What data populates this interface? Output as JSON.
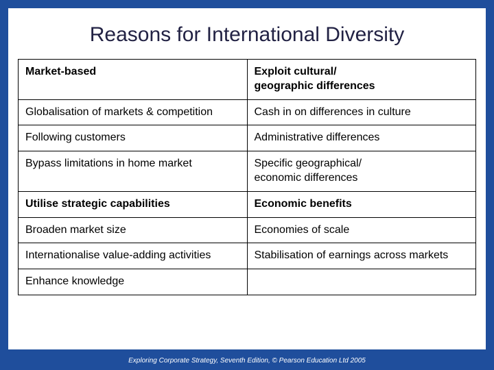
{
  "title": "Reasons for International Diversity",
  "table": {
    "columns": [
      {
        "width": "50%"
      },
      {
        "width": "50%"
      }
    ],
    "rows": [
      {
        "left": "Market-based",
        "right": "Exploit cultural/\ngeographic differences",
        "bold": true
      },
      {
        "left": "Globalisation of markets & competition",
        "right": "Cash in on differences in culture",
        "bold": false
      },
      {
        "left": "Following customers",
        "right": "Administrative differences",
        "bold": false
      },
      {
        "left": "Bypass limitations in home market",
        "right": "Specific geographical/\neconomic differences",
        "bold": false
      },
      {
        "left": "Utilise strategic capabilities",
        "right": "Economic benefits",
        "bold": true
      },
      {
        "left": "Broaden market size",
        "right": "Economies of scale",
        "bold": false
      },
      {
        "left": "Internationalise value-adding activities",
        "right": "Stabilisation of earnings across markets",
        "bold": false
      },
      {
        "left": "Enhance knowledge",
        "right": "",
        "bold": false
      }
    ],
    "border_color": "#000000",
    "background_color": "#ffffff",
    "text_color": "#000000",
    "cell_fontsize": 16
  },
  "footer": "Exploring Corporate Strategy, Seventh Edition, © Pearson Education Ltd 2005",
  "colors": {
    "slide_bg": "#1f4e9c",
    "inner_bg": "#ffffff",
    "title_color": "#222244",
    "footer_color": "#ffffff"
  }
}
